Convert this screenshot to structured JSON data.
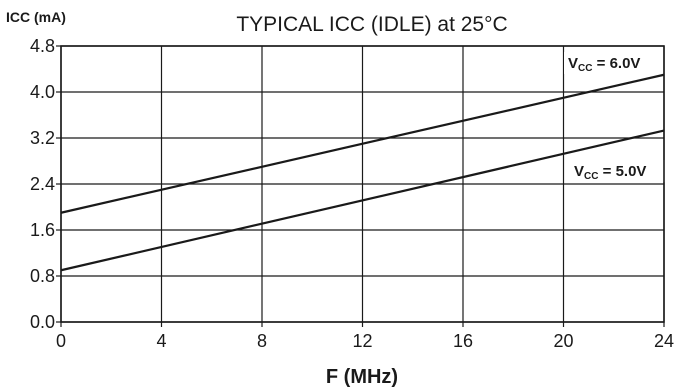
{
  "chart_data": {
    "type": "line",
    "title": "TYPICAL ICC (IDLE) at 25°C",
    "xlabel": "F (MHz)",
    "ylabel": "ICC (mA)",
    "xlim": [
      0,
      24
    ],
    "ylim": [
      0,
      4.8
    ],
    "x_ticks": [
      "0",
      "4",
      "8",
      "12",
      "16",
      "20",
      "24"
    ],
    "y_ticks": [
      "0.0",
      "0.8",
      "1.6",
      "2.4",
      "3.2",
      "4.0",
      "4.8"
    ],
    "grid": true,
    "series": [
      {
        "name": "VCC = 6.0V",
        "label_main": "V",
        "label_sub": "CC",
        "label_rest": " = 6.0V",
        "x": [
          0,
          24
        ],
        "y": [
          1.9,
          4.3
        ]
      },
      {
        "name": "VCC = 5.0V",
        "label_main": "V",
        "label_sub": "CC",
        "label_rest": " = 5.0V",
        "x": [
          0,
          24
        ],
        "y": [
          0.9,
          3.33
        ]
      }
    ]
  }
}
